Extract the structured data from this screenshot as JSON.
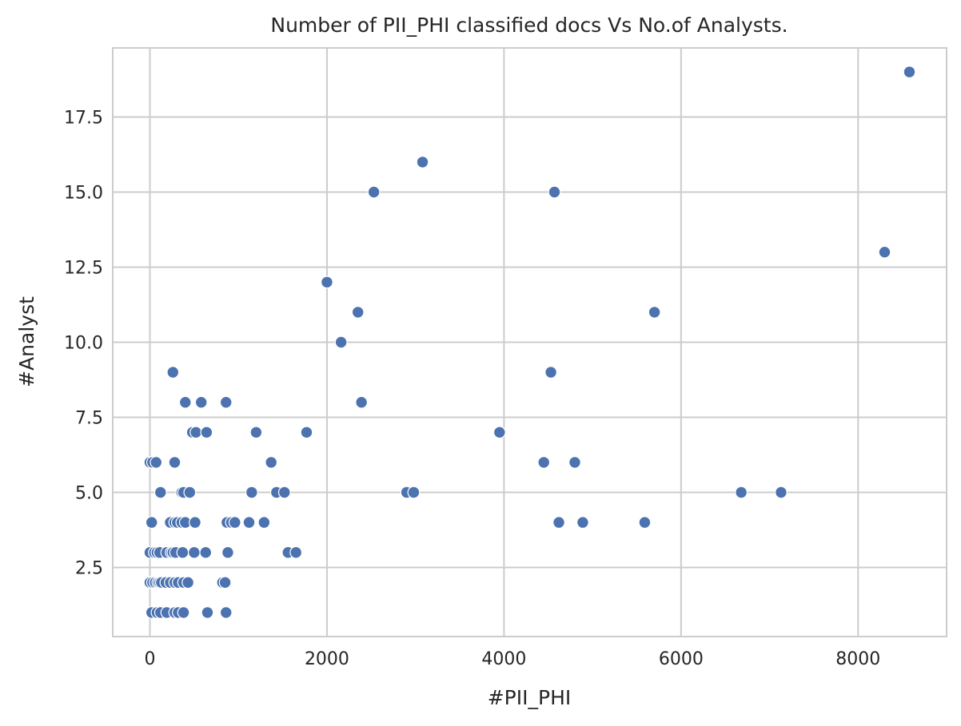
{
  "chart_data": {
    "type": "scatter",
    "title": "Number of PII_PHI classified docs Vs No.of Analysts.",
    "xlabel": "#PII_PHI",
    "ylabel": "#Analyst",
    "xlim": [
      -420,
      9000
    ],
    "ylim": [
      0.2,
      19.8
    ],
    "xticks": [
      0,
      2000,
      4000,
      6000,
      8000
    ],
    "yticks": [
      2.5,
      5.0,
      7.5,
      10.0,
      12.5,
      15.0,
      17.5
    ],
    "xtick_labels": [
      "0",
      "2000",
      "4000",
      "6000",
      "8000"
    ],
    "ytick_labels": [
      "2.5",
      "5.0",
      "7.5",
      "10.0",
      "12.5",
      "15.0",
      "17.5"
    ],
    "grid": true,
    "point_color": "#4c72b0",
    "points": [
      [
        8580,
        19
      ],
      [
        3080,
        16
      ],
      [
        2530,
        15
      ],
      [
        4570,
        15
      ],
      [
        8300,
        13
      ],
      [
        2000,
        12
      ],
      [
        2350,
        11
      ],
      [
        5700,
        11
      ],
      [
        2160,
        10
      ],
      [
        260,
        9
      ],
      [
        4530,
        9
      ],
      [
        400,
        8
      ],
      [
        580,
        8
      ],
      [
        860,
        8
      ],
      [
        2390,
        8
      ],
      [
        480,
        7
      ],
      [
        520,
        7
      ],
      [
        640,
        7
      ],
      [
        1200,
        7
      ],
      [
        1770,
        7
      ],
      [
        3950,
        7
      ],
      [
        0,
        6
      ],
      [
        30,
        6
      ],
      [
        70,
        6
      ],
      [
        280,
        6
      ],
      [
        1370,
        6
      ],
      [
        4450,
        6
      ],
      [
        4800,
        6
      ],
      [
        120,
        5
      ],
      [
        360,
        5
      ],
      [
        380,
        5
      ],
      [
        450,
        5
      ],
      [
        1150,
        5
      ],
      [
        1430,
        5
      ],
      [
        1520,
        5
      ],
      [
        2900,
        5
      ],
      [
        2980,
        5
      ],
      [
        6680,
        5
      ],
      [
        7130,
        5
      ],
      [
        20,
        4
      ],
      [
        230,
        4
      ],
      [
        280,
        4
      ],
      [
        310,
        4
      ],
      [
        360,
        4
      ],
      [
        400,
        4
      ],
      [
        510,
        4
      ],
      [
        870,
        4
      ],
      [
        920,
        4
      ],
      [
        960,
        4
      ],
      [
        1120,
        4
      ],
      [
        1290,
        4
      ],
      [
        4620,
        4
      ],
      [
        4890,
        4
      ],
      [
        5590,
        4
      ],
      [
        0,
        3
      ],
      [
        50,
        3
      ],
      [
        80,
        3
      ],
      [
        110,
        3
      ],
      [
        190,
        3
      ],
      [
        240,
        3
      ],
      [
        260,
        3
      ],
      [
        290,
        3
      ],
      [
        370,
        3
      ],
      [
        500,
        3
      ],
      [
        630,
        3
      ],
      [
        880,
        3
      ],
      [
        1560,
        3
      ],
      [
        1650,
        3
      ],
      [
        0,
        2
      ],
      [
        30,
        2
      ],
      [
        60,
        2
      ],
      [
        90,
        2
      ],
      [
        110,
        2
      ],
      [
        130,
        2
      ],
      [
        180,
        2
      ],
      [
        230,
        2
      ],
      [
        280,
        2
      ],
      [
        320,
        2
      ],
      [
        380,
        2
      ],
      [
        430,
        2
      ],
      [
        820,
        2
      ],
      [
        850,
        2
      ],
      [
        20,
        1
      ],
      [
        80,
        1
      ],
      [
        120,
        1
      ],
      [
        190,
        1
      ],
      [
        280,
        1
      ],
      [
        320,
        1
      ],
      [
        380,
        1
      ],
      [
        650,
        1
      ],
      [
        860,
        1
      ]
    ]
  }
}
